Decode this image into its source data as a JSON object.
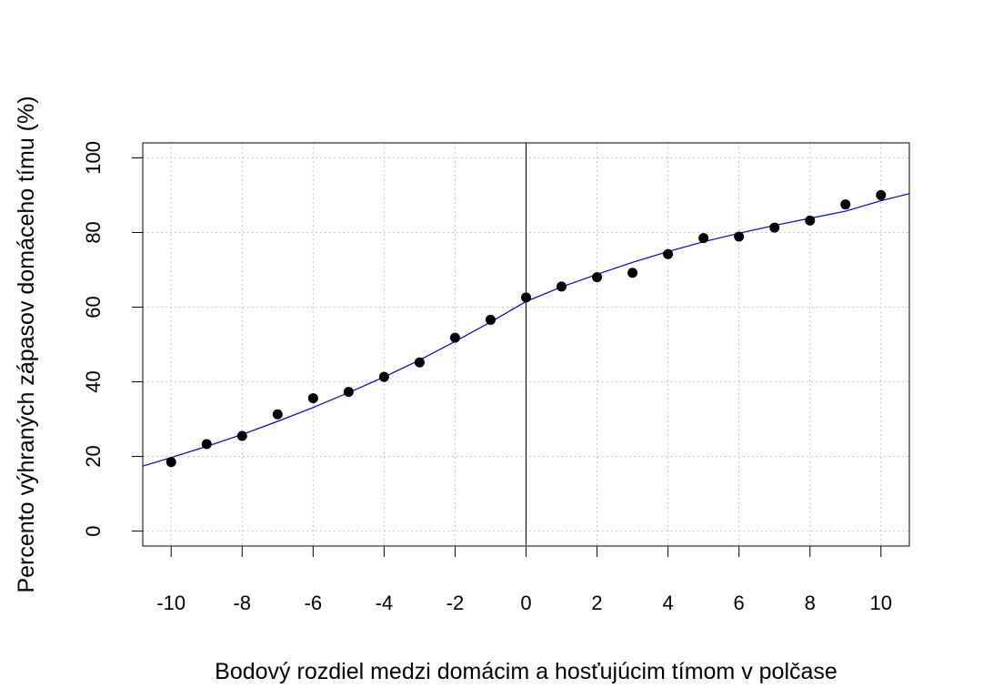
{
  "chart_data": {
    "type": "scatter",
    "title": "",
    "xlabel": "Bodový rozdiel medzi domácim a hosťujúcim tímom v polčase",
    "ylabel": "Percento výhraných zápasov domáceho tímu (%)",
    "xlim": [
      -10.8,
      10.8
    ],
    "ylim": [
      -4,
      104
    ],
    "x_ticks": [
      -10,
      -8,
      -6,
      -4,
      -2,
      0,
      2,
      4,
      6,
      8,
      10
    ],
    "x_tick_labels": [
      "-10",
      "-8",
      "-6",
      "-4",
      "-2",
      "0",
      "2",
      "4",
      "6",
      "8",
      "10"
    ],
    "y_ticks": [
      0,
      20,
      40,
      60,
      80,
      100
    ],
    "y_tick_labels": [
      "0",
      "20",
      "40",
      "60",
      "80",
      "100"
    ],
    "grid": true,
    "vertical_reference_line_x": 0,
    "points": {
      "x": [
        -10,
        -9,
        -8,
        -7,
        -6,
        -5,
        -4,
        -3,
        -2,
        -1,
        0,
        1,
        2,
        3,
        4,
        5,
        6,
        7,
        8,
        9,
        10
      ],
      "y": [
        18.5,
        23.3,
        25.5,
        31.3,
        35.6,
        37.3,
        41.3,
        45.2,
        51.8,
        56.6,
        62.6,
        65.5,
        68.0,
        69.2,
        74.2,
        78.5,
        78.9,
        81.3,
        83.2,
        87.5,
        90.0
      ]
    },
    "fitted_curve": {
      "x": [
        -10.8,
        -10,
        -9,
        -8,
        -7,
        -6,
        -5,
        -4,
        -3,
        -2,
        -1,
        0,
        1,
        2,
        3,
        4,
        5,
        6,
        7,
        8,
        9,
        10,
        10.8
      ],
      "y": [
        17.4,
        19.7,
        22.7,
        25.9,
        29.4,
        33.1,
        37.1,
        41.3,
        45.8,
        50.8,
        56.0,
        61.5,
        65.4,
        68.8,
        72.0,
        74.9,
        77.5,
        79.8,
        81.9,
        83.8,
        85.7,
        88.5,
        90.4
      ]
    },
    "colors": {
      "points": "#000000",
      "curve": "#0000cc",
      "grid": "#c8c8c8",
      "axes": "#000000"
    }
  }
}
